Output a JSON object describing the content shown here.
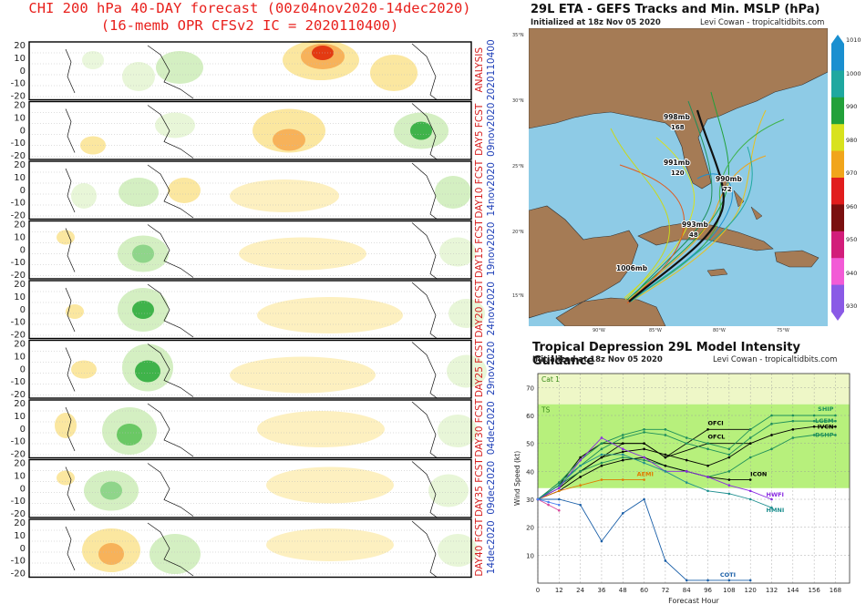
{
  "chi_panel": {
    "title_line1": "CHI 200 hPa 40-DAY forecast (00z04nov2020-14dec2020)",
    "title_line2": "(16-memb OPR CFSv2 IC = 2020110400)",
    "y_ticks": [
      "20",
      "10",
      "0",
      "-10",
      "-20"
    ],
    "panels": [
      {
        "label_red": "ANALYSIS",
        "label_blue": "2020110400"
      },
      {
        "label_red": "DAY5 FCST",
        "label_blue": "09nov2020"
      },
      {
        "label_red": "DAY10 FCST",
        "label_blue": "14nov2020"
      },
      {
        "label_red": "DAY15 FCST",
        "label_blue": "19nov2020"
      },
      {
        "label_red": "DAY20 FCST",
        "label_blue": "24nov2020"
      },
      {
        "label_red": "DAY25 FCST",
        "label_blue": "29nov2020"
      },
      {
        "label_red": "DAY30 FCST",
        "label_blue": "04dec2020"
      },
      {
        "label_red": "DAY35 FCST",
        "label_blue": "09dec2020"
      },
      {
        "label_red": "DAY40 FCST",
        "label_blue": "14dec2020"
      }
    ]
  },
  "tracks_map": {
    "title": "29L ETA - GEFS Tracks and Min. MSLP (hPa)",
    "init": "Initialized at 18z Nov 05 2020",
    "credit": "Levi Cowan - tropicaltidbits.com",
    "lat_labels": [
      "35°N",
      "30°N",
      "25°N",
      "20°N",
      "15°N"
    ],
    "lon_labels": [
      "90°W",
      "85°W",
      "80°W",
      "75°W"
    ],
    "pressure_labels": [
      {
        "text": "998mb",
        "num": "168"
      },
      {
        "text": "991mb",
        "num": "120"
      },
      {
        "text": "990mb",
        "num": "72"
      },
      {
        "text": "993mb",
        "num": "48"
      },
      {
        "text": "1006mb",
        "num": ""
      }
    ],
    "colorbar_labels": [
      "1010",
      "1000",
      "990",
      "980",
      "970",
      "960",
      "950",
      "940",
      "930"
    ],
    "colorbar_colors": [
      "#1a8fd0",
      "#1fa8a0",
      "#22a13a",
      "#d8e21e",
      "#f1a51b",
      "#e11d1d",
      "#7a0f0f",
      "#d21d7a",
      "#f25bd6",
      "#8a5ae6"
    ]
  },
  "chart_data": {
    "type": "line",
    "title": "Tropical Depression 29L Model Intensity Guidance",
    "init": "Initialized at 18z Nov 05 2020",
    "credit": "Levi Cowan - tropicaltidbits.com",
    "xlabel": "Forecast Hour",
    "ylabel": "Wind Speed (kt)",
    "x_ticks": [
      0,
      12,
      24,
      36,
      48,
      60,
      72,
      84,
      96,
      108,
      120,
      132,
      144,
      156,
      168
    ],
    "y_ticks": [
      10,
      20,
      30,
      40,
      50,
      60,
      70
    ],
    "xlim": [
      0,
      176
    ],
    "ylim": [
      0,
      75
    ],
    "bands": [
      {
        "name": "Cat 1",
        "from": 64,
        "to": 75,
        "color": "#eef7c7"
      },
      {
        "name": "TS",
        "from": 34,
        "to": 64,
        "color": "#b7f07c"
      }
    ],
    "series": [
      {
        "name": "OFCI",
        "color": "#000000",
        "x": [
          0,
          12,
          24,
          36,
          48,
          60,
          72,
          96,
          120
        ],
        "y": [
          30,
          35,
          45,
          50,
          50,
          50,
          45,
          55,
          55
        ]
      },
      {
        "name": "OFCL",
        "color": "#000000",
        "x": [
          0,
          12,
          24,
          36,
          48,
          60,
          72,
          96,
          120
        ],
        "y": [
          30,
          35,
          40,
          45,
          50,
          50,
          45,
          50,
          50
        ]
      },
      {
        "name": "SHIP",
        "color": "#1e8f5a",
        "x": [
          0,
          12,
          24,
          36,
          48,
          60,
          72,
          84,
          96,
          108,
          120,
          132,
          144,
          156,
          168
        ],
        "y": [
          30,
          36,
          44,
          50,
          53,
          55,
          55,
          52,
          50,
          48,
          55,
          60,
          60,
          60,
          60
        ]
      },
      {
        "name": "LGEM",
        "color": "#1e8f5a",
        "x": [
          0,
          12,
          24,
          36,
          48,
          60,
          72,
          84,
          96,
          108,
          120,
          132,
          144,
          156,
          168
        ],
        "y": [
          30,
          36,
          42,
          48,
          52,
          54,
          53,
          50,
          48,
          46,
          52,
          57,
          58,
          58,
          58
        ]
      },
      {
        "name": "IVCN",
        "color": "#000000",
        "x": [
          0,
          12,
          24,
          36,
          48,
          60,
          72,
          84,
          96,
          108,
          120,
          132,
          144,
          156,
          168
        ],
        "y": [
          30,
          34,
          40,
          45,
          47,
          48,
          46,
          44,
          42,
          45,
          50,
          53,
          55,
          56,
          56
        ]
      },
      {
        "name": "DSHP",
        "color": "#1e8f5a",
        "x": [
          0,
          12,
          24,
          36,
          48,
          60,
          72,
          84,
          96,
          108,
          120,
          132,
          144,
          156,
          168
        ],
        "y": [
          30,
          35,
          40,
          43,
          45,
          44,
          42,
          40,
          38,
          40,
          45,
          48,
          52,
          53,
          53
        ]
      },
      {
        "name": "ICON",
        "color": "#000000",
        "x": [
          0,
          12,
          24,
          36,
          48,
          60,
          72,
          84,
          96,
          108,
          120
        ],
        "y": [
          30,
          33,
          38,
          42,
          44,
          45,
          42,
          40,
          38,
          37,
          37
        ]
      },
      {
        "name": "AEMI",
        "color": "#e07b00",
        "x": [
          0,
          12,
          24,
          36,
          48,
          60
        ],
        "y": [
          30,
          33,
          35,
          37,
          37,
          37
        ]
      },
      {
        "name": "HWFI",
        "color": "#8a2be2",
        "x": [
          0,
          12,
          24,
          36,
          48,
          60,
          72,
          84,
          96,
          108,
          120,
          132
        ],
        "y": [
          30,
          34,
          44,
          52,
          48,
          45,
          40,
          40,
          38,
          35,
          33,
          30
        ]
      },
      {
        "name": "HMNI",
        "color": "#1e8f8f",
        "x": [
          0,
          12,
          24,
          36,
          48,
          60,
          72,
          84,
          96,
          108,
          120,
          132
        ],
        "y": [
          30,
          35,
          42,
          46,
          46,
          43,
          40,
          36,
          33,
          32,
          30,
          27
        ]
      },
      {
        "name": "COTI",
        "color": "#1a5fa8",
        "x": [
          0,
          12,
          24,
          36,
          48,
          60,
          72,
          84,
          96,
          108,
          120
        ],
        "y": [
          30,
          30,
          28,
          15,
          25,
          30,
          8,
          1,
          1,
          1,
          1
        ]
      },
      {
        "name": "",
        "color": "#d9479a",
        "x": [
          0,
          6,
          12
        ],
        "y": [
          30,
          28,
          26
        ]
      },
      {
        "name": "",
        "color": "#4a7ff0",
        "x": [
          0,
          6,
          12
        ],
        "y": [
          30,
          29,
          28
        ]
      }
    ]
  }
}
